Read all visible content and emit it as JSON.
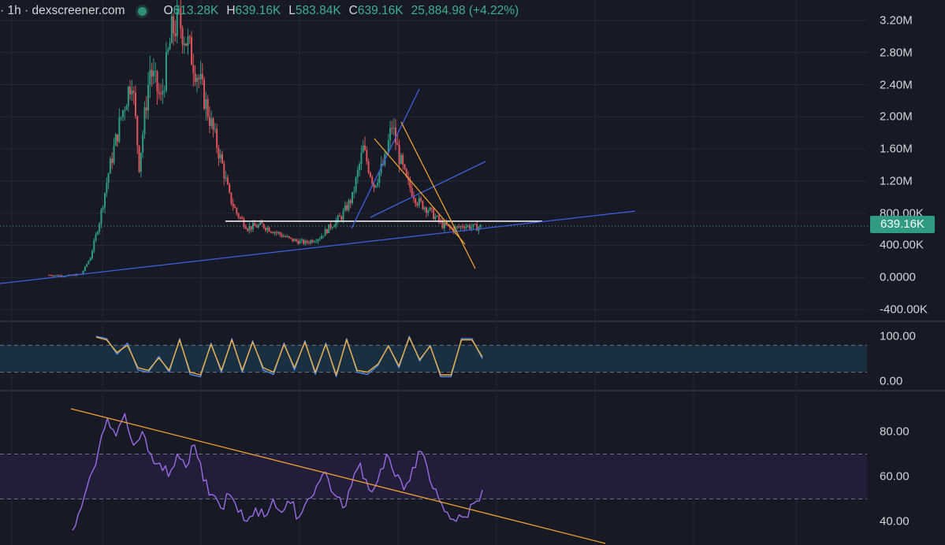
{
  "header": {
    "symbol_text": "· 1h · dexscreener.com",
    "open_label": "O",
    "open_value": "613.28K",
    "high_label": "H",
    "high_value": "639.16K",
    "low_label": "L",
    "low_value": "583.84K",
    "close_label": "C",
    "close_value": "639.16K",
    "change_text": "25,884.98 (+4.22%)"
  },
  "colors": {
    "background": "#171a24",
    "up": "#2e9b82",
    "down": "#e0535a",
    "trendline_blue": "#3f5fe0",
    "trendline_orange": "#f0a030",
    "stoch_k": "#4f8df0",
    "stoch_d": "#f0b040",
    "rsi_line": "#9b6be8"
  },
  "chart_data": [
    {
      "type": "candlestick",
      "pane": "price",
      "ylim": [
        -500000,
        3400000
      ],
      "y_ticks": [
        "3.20M",
        "2.80M",
        "2.40M",
        "2.00M",
        "1.60M",
        "1.20M",
        "800.00K",
        "400.00K",
        "0.0000",
        "-400.00K"
      ],
      "last_price_label": "639.16K",
      "last_price": 639160,
      "horizontal_level": 700000,
      "shape": [
        [
          0,
          30000
        ],
        [
          10,
          20000
        ],
        [
          18,
          40000
        ],
        [
          23,
          250000
        ],
        [
          28,
          700000
        ],
        [
          33,
          1300000
        ],
        [
          40,
          2000000
        ],
        [
          46,
          2500000
        ],
        [
          50,
          1400000
        ],
        [
          56,
          2600000
        ],
        [
          62,
          2200000
        ],
        [
          68,
          3050000
        ],
        [
          72,
          3200000
        ],
        [
          77,
          2900000
        ],
        [
          84,
          2400000
        ],
        [
          90,
          1900000
        ],
        [
          96,
          1400000
        ],
        [
          100,
          1000000
        ],
        [
          104,
          800000
        ],
        [
          110,
          620000
        ],
        [
          118,
          650000
        ],
        [
          126,
          560000
        ],
        [
          134,
          470000
        ],
        [
          142,
          430000
        ],
        [
          150,
          500000
        ],
        [
          156,
          640000
        ],
        [
          162,
          760000
        ],
        [
          168,
          1000000
        ],
        [
          174,
          1600000
        ],
        [
          180,
          1150000
        ],
        [
          186,
          1450000
        ],
        [
          190,
          1900000
        ],
        [
          194,
          1500000
        ],
        [
          198,
          1200000
        ],
        [
          204,
          950000
        ],
        [
          210,
          850000
        ],
        [
          218,
          650000
        ],
        [
          224,
          600000
        ],
        [
          230,
          650000
        ],
        [
          236,
          620000
        ],
        [
          240,
          639160
        ]
      ]
    },
    {
      "type": "line",
      "pane": "stochastic",
      "ylim": [
        -5,
        120
      ],
      "y_ticks": [
        "100.00",
        "0.00"
      ],
      "bands": [
        80,
        20
      ],
      "series": [
        {
          "values": [
            100,
            95,
            60,
            85,
            25,
            20,
            55,
            20,
            95,
            15,
            10,
            85,
            20,
            95,
            20,
            90,
            25,
            15,
            85,
            25,
            90,
            15,
            85,
            10,
            95,
            20,
            15,
            35,
            80,
            30,
            100,
            45,
            80,
            10,
            10,
            95,
            95,
            50
          ]
        },
        {
          "values": [
            98,
            92,
            64,
            80,
            30,
            24,
            52,
            24,
            92,
            20,
            14,
            82,
            24,
            92,
            24,
            87,
            30,
            20,
            82,
            30,
            87,
            20,
            82,
            14,
            92,
            24,
            20,
            38,
            78,
            34,
            97,
            48,
            78,
            14,
            14,
            92,
            92,
            54
          ]
        }
      ]
    },
    {
      "type": "line",
      "pane": "rsi",
      "ylim": [
        30,
        95
      ],
      "y_ticks": [
        "80.00",
        "60.00",
        "40.00"
      ],
      "bands": [
        70,
        50
      ],
      "series": [
        {
          "values": [
            36,
            46,
            60,
            72,
            86,
            78,
            88,
            74,
            80,
            70,
            66,
            60,
            70,
            64,
            74,
            58,
            52,
            46,
            52,
            44,
            40,
            46,
            42,
            50,
            44,
            48,
            42,
            50,
            56,
            62,
            52,
            46,
            56,
            66,
            54,
            58,
            70,
            60,
            54,
            64,
            71,
            58,
            50,
            44,
            40,
            42,
            48,
            54
          ]
        }
      ]
    }
  ]
}
